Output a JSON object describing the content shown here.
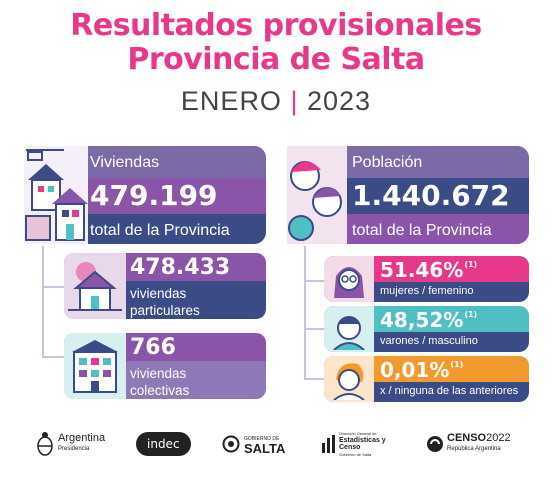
{
  "header": {
    "title_line1": "Resultados provisionales",
    "title_line2": "Provincia de Salta",
    "subtitle_month": "ENERO",
    "subtitle_sep": "|",
    "subtitle_year": "2023"
  },
  "viviendas": {
    "label": "Viviendas",
    "total": "479.199",
    "total_caption": "total de la Provincia",
    "particulares": {
      "value": "478.433",
      "line1": "viviendas",
      "line2": "particulares"
    },
    "colectivas": {
      "value": "766",
      "line1": "viviendas",
      "line2": "colectivas"
    }
  },
  "poblacion": {
    "label": "Población",
    "total": "1.440.672",
    "total_caption": "total de la Provincia",
    "mujeres": {
      "value": "51.46%",
      "note": "(1)",
      "caption": "mujeres / femenino"
    },
    "varones": {
      "value": "48,52%",
      "note": "(1)",
      "caption": "varones / masculino"
    },
    "ninguna": {
      "value": "0,01%",
      "note": "(1)",
      "caption": "x / ninguna de las anteriores"
    }
  },
  "logos": {
    "argentina": "Argentina",
    "argentina_sub": "Presidencia",
    "indec": "indec",
    "salta_top": "GOBIERNO DE",
    "salta": "SALTA",
    "dir_line1": "Dirección General de",
    "dir_line2": "Estadísticas y",
    "dir_line3": "Censo",
    "dir_line4": "Gobierno de Salta",
    "censo": "CENSO",
    "censo_year": "2022",
    "censo_sub": "República Argentina"
  },
  "colors": {
    "pink": "#e7388c",
    "purple_light": "#8e79b6",
    "purple": "#8a55a8",
    "navy": "#3b4b86",
    "teal": "#4fbfc4",
    "orange": "#f29a2e",
    "connector": "#c9c3dc"
  }
}
